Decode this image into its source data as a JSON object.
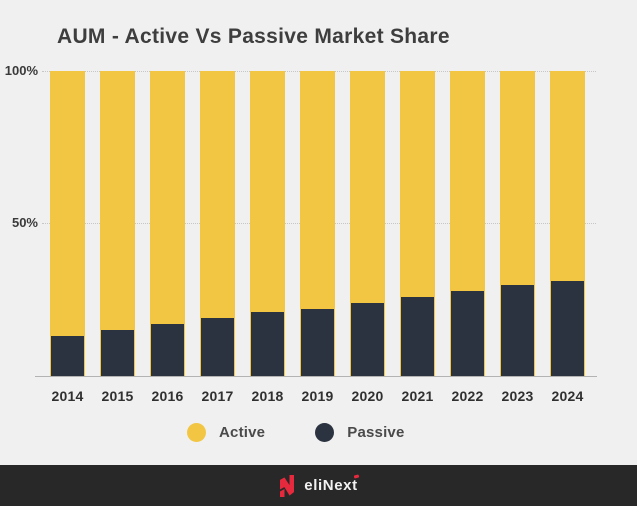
{
  "title": "AUM - Active Vs Passive Market Share",
  "chart_data": {
    "type": "bar",
    "stacked": true,
    "value_format": "percent",
    "title": "AUM - Active Vs Passive Market Share",
    "categories": [
      "2014",
      "2015",
      "2016",
      "2017",
      "2018",
      "2019",
      "2020",
      "2021",
      "2022",
      "2023",
      "2024"
    ],
    "series": [
      {
        "name": "Active",
        "color": "#F2C643",
        "values": [
          87,
          85,
          83,
          81,
          79,
          78,
          76,
          74,
          72,
          70,
          69
        ]
      },
      {
        "name": "Passive",
        "color": "#2B3240",
        "values": [
          13,
          15,
          17,
          19,
          21,
          22,
          24,
          26,
          28,
          30,
          31
        ]
      }
    ],
    "ylim": [
      0,
      100
    ],
    "y_ticks": [
      {
        "value": 100,
        "label": "100%"
      },
      {
        "value": 50,
        "label": "50%"
      }
    ],
    "grid": "horizontal dotted lines at 50% and 100%",
    "legend_position": "bottom"
  },
  "colors": {
    "background": "#F0F0F0",
    "active": "#F2C643",
    "passive": "#2B3240",
    "title_text": "#3E3E3E",
    "axis_text": "#3A3A3A",
    "gridline": "#C6C6C6",
    "axis_line": "#B3B3B3",
    "footer_background": "#282828",
    "logo_red": "#E6293C",
    "logo_text": "#F2F2F2"
  },
  "footer": {
    "brand": "eliNext"
  }
}
